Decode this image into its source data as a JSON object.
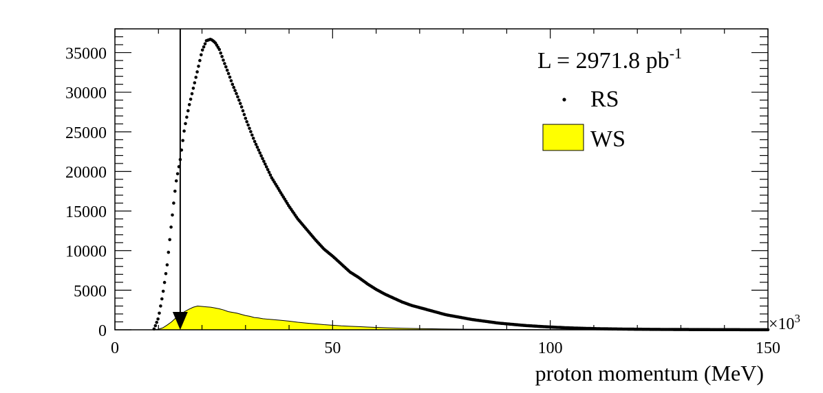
{
  "chart_data": {
    "type": "scatter",
    "title": "",
    "xlabel": "proton momentum (MeV)",
    "ylabel": "",
    "x_multiplier_label": "×10",
    "x_multiplier_exp": "3",
    "xlim": [
      0,
      150
    ],
    "ylim": [
      0,
      38000
    ],
    "xticks": [
      0,
      50,
      100,
      150
    ],
    "yticks": [
      0,
      5000,
      10000,
      15000,
      20000,
      25000,
      30000,
      35000
    ],
    "grid": false,
    "legend_placement": "top-right",
    "luminosity": {
      "prefix": "L = 2971.8 pb",
      "sup": "-1"
    },
    "cut_marker": {
      "x": 15,
      "style": "arrow-down"
    },
    "series": [
      {
        "name": "RS",
        "kind": "points",
        "color": "#000000",
        "x": [
          9,
          10,
          11,
          12,
          13,
          14,
          15,
          16,
          17,
          18,
          19,
          20,
          21,
          22,
          23,
          24,
          25,
          26,
          27,
          28,
          29,
          30,
          32,
          34,
          36,
          38,
          40,
          42,
          44,
          46,
          48,
          50,
          52,
          54,
          56,
          58,
          60,
          62,
          64,
          66,
          68,
          70,
          72,
          74,
          76,
          78,
          80,
          82,
          84,
          86,
          88,
          90,
          92,
          94,
          96,
          98,
          100,
          102,
          104,
          106,
          108,
          110,
          114,
          118,
          122,
          126,
          130,
          134,
          138,
          142,
          146,
          150
        ],
        "y": [
          100,
          1500,
          4500,
          8200,
          13500,
          18500,
          21500,
          25500,
          28200,
          30500,
          32800,
          35200,
          36500,
          36700,
          36300,
          35400,
          33900,
          32500,
          31000,
          29700,
          28300,
          26700,
          23900,
          21500,
          19200,
          17400,
          15600,
          14000,
          12700,
          11400,
          10200,
          9300,
          8300,
          7300,
          6600,
          5800,
          5100,
          4500,
          4000,
          3500,
          3100,
          2800,
          2500,
          2200,
          1900,
          1700,
          1500,
          1300,
          1150,
          1000,
          850,
          750,
          650,
          550,
          480,
          410,
          350,
          300,
          250,
          210,
          180,
          150,
          110,
          80,
          60,
          45,
          35,
          25,
          20,
          15,
          10,
          8
        ]
      },
      {
        "name": "WS",
        "kind": "filled-histogram",
        "color": "#ffff00",
        "x": [
          9,
          10,
          11,
          12,
          13,
          14,
          15,
          16,
          17,
          18,
          19,
          20,
          21,
          22,
          23,
          24,
          25,
          26,
          27,
          28,
          29,
          30,
          31,
          32,
          33,
          34,
          35,
          36,
          38,
          40,
          42,
          44,
          46,
          48,
          50,
          52,
          54,
          56,
          58,
          60,
          62,
          64,
          66,
          68,
          70,
          75,
          80,
          85,
          90,
          95,
          100,
          110,
          120,
          130,
          140,
          150
        ],
        "y": [
          0,
          80,
          250,
          600,
          1000,
          1500,
          1900,
          2300,
          2600,
          2850,
          3000,
          2950,
          2900,
          2850,
          2750,
          2650,
          2500,
          2300,
          2200,
          2100,
          1950,
          1800,
          1700,
          1550,
          1500,
          1400,
          1350,
          1300,
          1200,
          1100,
          950,
          850,
          750,
          650,
          580,
          500,
          450,
          400,
          350,
          300,
          260,
          230,
          200,
          170,
          150,
          110,
          80,
          60,
          40,
          30,
          20,
          12,
          6,
          3,
          1,
          0
        ]
      }
    ]
  }
}
